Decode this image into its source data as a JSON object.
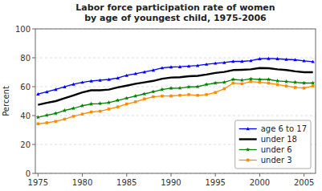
{
  "chart_data": {
    "type": "line",
    "title": "Labor force participation rate of women\nby age of youngest child, 1975-2006",
    "y_label": "Percent",
    "x": [
      1975,
      1976,
      1977,
      1978,
      1979,
      1980,
      1981,
      1982,
      1983,
      1984,
      1985,
      1986,
      1987,
      1988,
      1989,
      1990,
      1991,
      1992,
      1993,
      1994,
      1995,
      1996,
      1997,
      1998,
      1999,
      2000,
      2001,
      2002,
      2003,
      2004,
      2005,
      2006
    ],
    "series": [
      {
        "name": "age 6 to 17",
        "color": "#0000FF",
        "marker": "triangle",
        "values": [
          54.9,
          56.4,
          58.1,
          59.9,
          61.7,
          63.0,
          63.9,
          64.5,
          65.0,
          66.0,
          67.8,
          69.0,
          70.2,
          71.4,
          73.0,
          73.6,
          73.8,
          74.2,
          74.6,
          75.5,
          76.2,
          76.7,
          77.5,
          77.5,
          78.0,
          79.3,
          79.5,
          79.3,
          78.9,
          78.6,
          77.9,
          77.3
        ]
      },
      {
        "name": "under 18",
        "color": "#000000",
        "values": [
          47.4,
          48.8,
          50.0,
          52.0,
          54.0,
          56.0,
          57.5,
          57.5,
          58.0,
          59.5,
          60.7,
          62.0,
          63.0,
          64.0,
          65.5,
          66.3,
          66.5,
          67.2,
          67.5,
          68.4,
          69.5,
          70.2,
          71.5,
          71.7,
          72.0,
          72.9,
          72.8,
          72.0,
          71.5,
          70.6,
          70.0,
          70.0
        ]
      },
      {
        "name": "under 6",
        "color": "#008000",
        "marker": "star",
        "values": [
          38.8,
          40.2,
          41.5,
          43.5,
          45.0,
          46.8,
          48.0,
          48.3,
          49.0,
          50.5,
          52.0,
          53.5,
          55.0,
          56.5,
          58.0,
          58.9,
          59.0,
          59.8,
          60.0,
          61.5,
          62.5,
          63.0,
          65.0,
          64.5,
          65.3,
          65.0,
          65.0,
          64.0,
          63.5,
          63.0,
          62.5,
          62.5
        ]
      },
      {
        "name": "under 3",
        "color": "#FF8C00",
        "marker": "square",
        "values": [
          34.3,
          35.0,
          36.0,
          37.5,
          39.5,
          41.0,
          42.5,
          43.0,
          44.5,
          46.0,
          48.0,
          49.5,
          51.5,
          53.0,
          53.5,
          53.6,
          54.0,
          54.5,
          54.0,
          54.5,
          56.0,
          58.5,
          62.5,
          62.0,
          63.5,
          63.0,
          62.5,
          61.5,
          60.5,
          59.5,
          59.0,
          60.5
        ]
      }
    ],
    "xlim": [
      1974.7,
      2006.3
    ],
    "ylim": [
      0,
      100
    ],
    "xticks": [
      1975,
      1980,
      1985,
      1990,
      1995,
      2000,
      2005
    ],
    "yticks": [
      0,
      20,
      40,
      60,
      80,
      100
    ],
    "grid": true,
    "legend": "lower right"
  }
}
